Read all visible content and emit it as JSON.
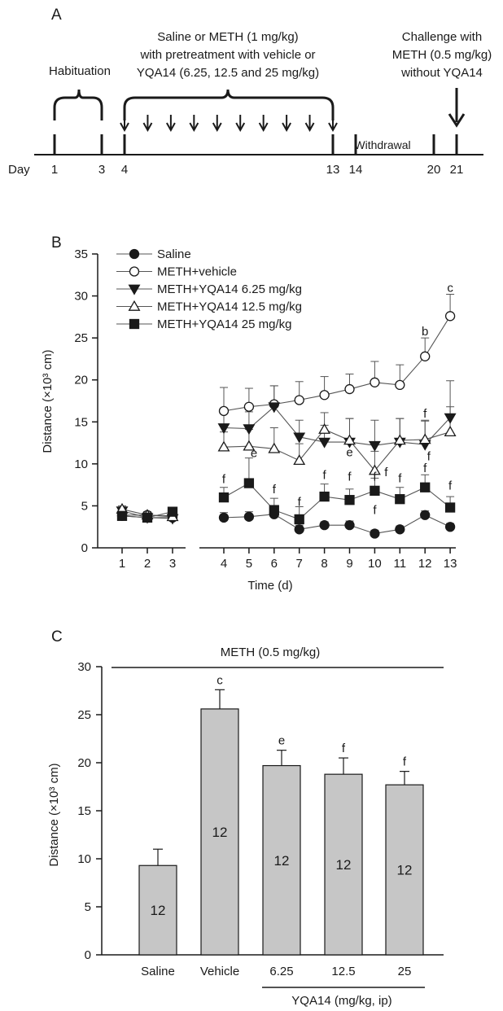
{
  "panel_a": {
    "label": "A",
    "habituation_text": "Habituation",
    "treatment_lines": [
      "Saline or METH (1 mg/kg)",
      "with pretreatment with vehicle or",
      "YQA14 (6.25, 12.5 and 25 mg/kg)"
    ],
    "challenge_lines": [
      "Challenge with",
      "METH (0.5 mg/kg)",
      "without YQA14"
    ],
    "withdrawal_text": "Withdrawal",
    "day_prefix": "Day",
    "day_labels": [
      "1",
      "3",
      "4",
      "13",
      "14",
      "20",
      "21"
    ]
  },
  "chart_data": [
    {
      "panel": "B",
      "type": "line",
      "ylabel": "Distance (×10³ cm)",
      "xlabel": "Time (d)",
      "ylim": [
        0,
        35
      ],
      "yticks": [
        0,
        5,
        10,
        15,
        20,
        25,
        30,
        35
      ],
      "x": [
        1,
        2,
        3,
        4,
        5,
        6,
        7,
        8,
        9,
        10,
        11,
        12,
        13
      ],
      "series": [
        {
          "name": "Saline",
          "marker": "circle-filled",
          "values": [
            3.8,
            3.6,
            3.6,
            3.6,
            3.7,
            4.0,
            2.2,
            2.7,
            2.7,
            1.7,
            2.2,
            3.9,
            2.5
          ],
          "err": [
            0.3,
            0.3,
            0.3,
            0.6,
            0.6,
            0.6,
            0.5,
            0.4,
            0.5,
            0.4,
            0.4,
            0.5,
            0.4
          ]
        },
        {
          "name": "METH+vehicle",
          "marker": "circle-open",
          "values": [
            3.9,
            3.9,
            3.8,
            16.3,
            16.8,
            17.1,
            17.6,
            18.2,
            18.9,
            19.7,
            19.4,
            22.8,
            27.6
          ],
          "err": [
            0.4,
            0.4,
            0.4,
            2.8,
            2.2,
            2.2,
            2.2,
            2.2,
            1.8,
            2.5,
            2.4,
            2.2,
            2.6
          ]
        },
        {
          "name": "METH+YQA14 6.25 mg/kg",
          "marker": "triangle-down-filled",
          "values": [
            4.4,
            3.6,
            3.5,
            14.3,
            14.2,
            16.8,
            13.2,
            12.6,
            12.6,
            12.2,
            12.6,
            12.3,
            15.5
          ],
          "err": [
            0.4,
            0.4,
            0.4,
            2.2,
            2.0,
            2.5,
            2.0,
            2.0,
            2.8,
            3.0,
            2.8,
            2.8,
            4.4
          ]
        },
        {
          "name": "METH+YQA14 12.5 mg/kg",
          "marker": "triangle-up-open",
          "values": [
            4.6,
            3.9,
            3.7,
            12.0,
            12.1,
            11.8,
            10.4,
            14.1,
            12.8,
            9.2,
            12.8,
            12.9,
            13.8
          ],
          "err": [
            0.4,
            0.4,
            0.4,
            1.8,
            2.0,
            2.5,
            2.0,
            2.0,
            2.6,
            2.3,
            2.6,
            2.3,
            3.0
          ]
        },
        {
          "name": "METH+YQA14 25 mg/kg",
          "marker": "square-filled",
          "values": [
            3.8,
            3.6,
            4.3,
            6.0,
            7.7,
            4.5,
            3.4,
            6.1,
            5.7,
            6.8,
            5.8,
            7.2,
            4.8
          ],
          "err": [
            0.4,
            0.4,
            0.4,
            1.2,
            3.0,
            1.4,
            1.5,
            1.5,
            1.3,
            1.5,
            1.4,
            1.5,
            1.3
          ]
        }
      ],
      "annotations": [
        {
          "text": "c",
          "x": 13,
          "y": 31.0
        },
        {
          "text": "b",
          "x": 12,
          "y": 25.8
        },
        {
          "text": "f",
          "x": 12,
          "y": 16.0
        },
        {
          "text": "e",
          "x": 9,
          "y": 11.4
        },
        {
          "text": "f",
          "x": 12.15,
          "y": 10.9
        },
        {
          "text": "f",
          "x": 4,
          "y": 8.2
        },
        {
          "text": "e",
          "x": 5.2,
          "y": 11.3
        },
        {
          "text": "f",
          "x": 6,
          "y": 7.0
        },
        {
          "text": "f",
          "x": 7,
          "y": 5.5
        },
        {
          "text": "f",
          "x": 8,
          "y": 8.7
        },
        {
          "text": "f",
          "x": 9,
          "y": 8.5
        },
        {
          "text": "f",
          "x": 10,
          "y": 8.5
        },
        {
          "text": "f",
          "x": 10.45,
          "y": 9.0
        },
        {
          "text": "f",
          "x": 10,
          "y": 4.5
        },
        {
          "text": "f",
          "x": 11,
          "y": 8.3
        },
        {
          "text": "f",
          "x": 12,
          "y": 9.5
        },
        {
          "text": "f",
          "x": 13,
          "y": 7.4
        }
      ],
      "panel_label": "B"
    },
    {
      "panel": "C",
      "type": "bar",
      "title": "METH (0.5 mg/kg)",
      "ylabel": "Distance (×10³ cm)",
      "ylim": [
        0,
        30
      ],
      "yticks": [
        0,
        5,
        10,
        15,
        20,
        25,
        30
      ],
      "categories": [
        "Saline",
        "Vehicle",
        "6.25",
        "12.5",
        "25"
      ],
      "values": [
        9.3,
        25.6,
        19.7,
        18.8,
        17.7
      ],
      "err": [
        1.7,
        2.0,
        1.6,
        1.7,
        1.4
      ],
      "n_labels": [
        "12",
        "12",
        "12",
        "12",
        "12"
      ],
      "sig_labels": [
        "",
        "c",
        "e",
        "f",
        "f"
      ],
      "group_label": "YQA14 (mg/kg, ip)",
      "bar_color": "#c6c6c6",
      "panel_label": "C"
    }
  ]
}
